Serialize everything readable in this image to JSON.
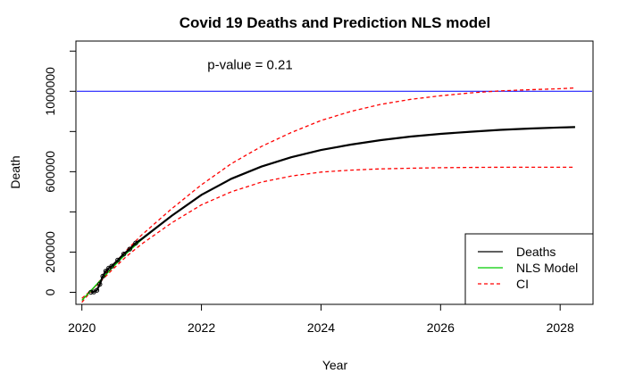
{
  "chart_data": {
    "type": "line",
    "title": "Covid 19 Deaths and Prediction NLS model",
    "xlabel": "Year",
    "ylabel": "Death",
    "xlim": [
      2019.9,
      2028.55
    ],
    "ylim": [
      -60000,
      1250000
    ],
    "x_ticks": [
      2020,
      2022,
      2024,
      2026,
      2028
    ],
    "x_tick_labels": [
      "2020",
      "2022",
      "2024",
      "2026",
      "2028"
    ],
    "y_ticks": [
      0,
      200000,
      400000,
      600000,
      800000,
      1000000,
      1200000
    ],
    "y_tick_labels": [
      "0",
      "200000",
      "",
      "600000",
      "",
      "1000000",
      ""
    ],
    "hline": {
      "y": 1000000,
      "color": "#0000ff"
    },
    "annotation": {
      "text": "p-value = 0.21",
      "x": 2022.1,
      "y": 1110000
    },
    "legend": {
      "position": "bottom-right"
    },
    "series": [
      {
        "name": "Deaths",
        "color": "#000000",
        "style": "solid",
        "x": [
          2020.15,
          2020.2,
          2020.25,
          2020.3,
          2020.35,
          2020.4,
          2020.45,
          2020.5,
          2020.6,
          2020.7,
          2020.8,
          2020.9,
          2021.0,
          2021.5,
          2022.0,
          2022.5,
          2023.0,
          2023.5,
          2024.0,
          2024.5,
          2025.0,
          2025.5,
          2026.0,
          2026.5,
          2027.0,
          2027.5,
          2028.0,
          2028.25
        ],
        "y": [
          0,
          2000,
          10000,
          40000,
          80000,
          105000,
          120000,
          130000,
          160000,
          190000,
          215000,
          245000,
          265000,
          380000,
          485000,
          565000,
          625000,
          672000,
          708000,
          735000,
          757000,
          775000,
          788000,
          799000,
          808000,
          815000,
          820000,
          822000
        ]
      },
      {
        "name": "NLS Model",
        "color": "#00cc00",
        "style": "solid",
        "x": [
          2020.0,
          2020.25,
          2020.5,
          2020.75,
          2021.0,
          2021.5,
          2022.0,
          2022.5,
          2023.0,
          2023.5,
          2024.0,
          2024.5,
          2025.0,
          2025.5,
          2026.0,
          2026.5,
          2027.0,
          2027.5,
          2028.0,
          2028.25
        ],
        "y": [
          -40000,
          40000,
          120000,
          195000,
          262000,
          380000,
          485000,
          565000,
          625000,
          672000,
          708000,
          735000,
          757000,
          775000,
          788000,
          799000,
          808000,
          815000,
          820000,
          822000
        ]
      },
      {
        "name": "CI",
        "color": "#ff0000",
        "style": "dashed",
        "x": [
          2020.0,
          2020.25,
          2020.5,
          2020.75,
          2021.0,
          2021.5,
          2022.0,
          2022.5,
          2023.0,
          2023.5,
          2024.0,
          2024.5,
          2025.0,
          2025.5,
          2026.0,
          2026.5,
          2027.0,
          2027.5,
          2028.0,
          2028.25
        ],
        "y": [
          -50000,
          40000,
          130000,
          210000,
          285000,
          415000,
          535000,
          640000,
          725000,
          795000,
          855000,
          900000,
          935000,
          960000,
          978000,
          992000,
          1002000,
          1008000,
          1013000,
          1017000
        ]
      },
      {
        "name": "CI lower",
        "color": "#ff0000",
        "style": "dashed",
        "x": [
          2020.0,
          2020.25,
          2020.5,
          2020.75,
          2021.0,
          2021.5,
          2022.0,
          2022.5,
          2023.0,
          2023.5,
          2024.0,
          2024.5,
          2025.0,
          2025.5,
          2026.0,
          2026.5,
          2027.0,
          2027.5,
          2028.0,
          2028.25
        ],
        "y": [
          -30000,
          35000,
          110000,
          180000,
          240000,
          345000,
          435000,
          500000,
          548000,
          578000,
          598000,
          608000,
          614000,
          617000,
          620000,
          621000,
          622000,
          622000,
          622000,
          622000
        ]
      }
    ]
  }
}
